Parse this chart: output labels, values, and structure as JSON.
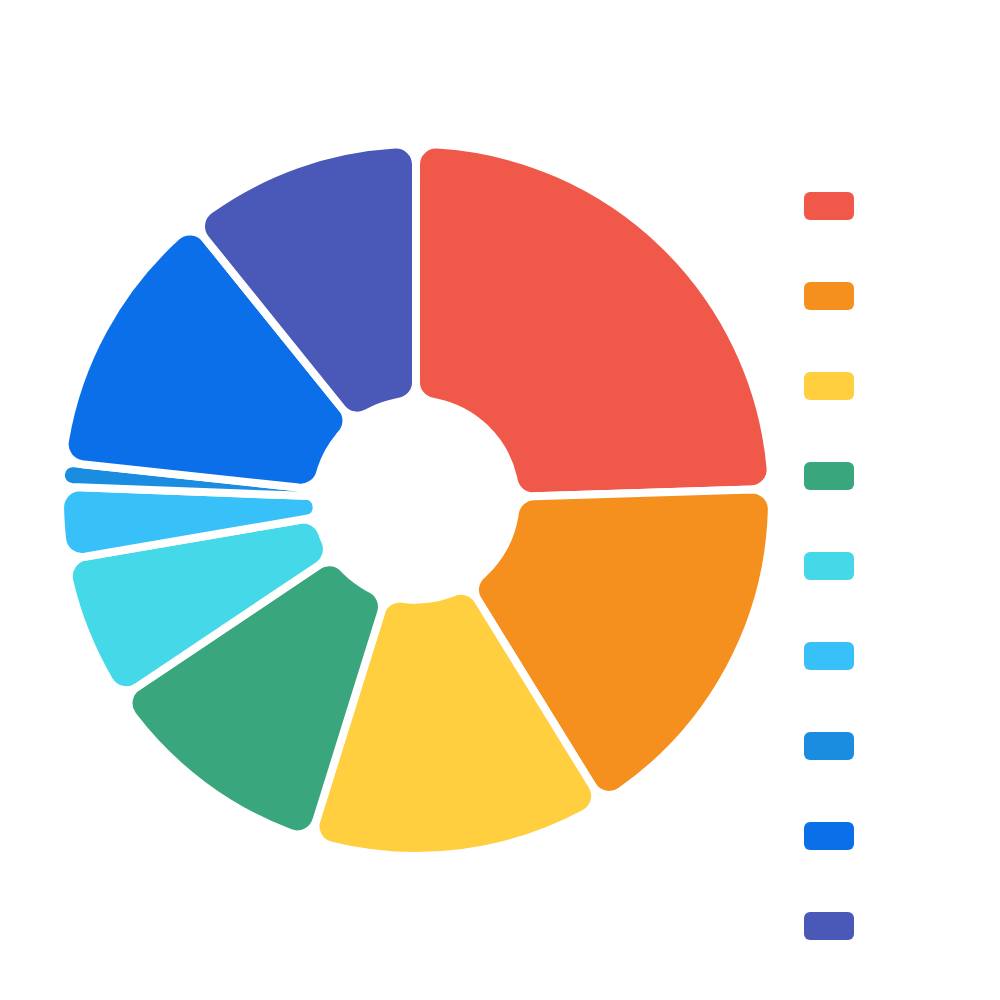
{
  "chart_data": {
    "type": "donut",
    "categories": [
      null,
      null,
      null,
      null,
      null,
      null,
      null,
      null,
      null
    ],
    "values": [
      24.5,
      16.7,
      13.6,
      10.8,
      6.7,
      3.3,
      1.1,
      12.5,
      10.8
    ],
    "colors": [
      "#f0584a",
      "#f5901f",
      "#ffcf40",
      "#3aa67e",
      "#45d8e8",
      "#38c0f8",
      "#1a8de0",
      "#0a6fe8",
      "#4a58b8"
    ]
  }
}
